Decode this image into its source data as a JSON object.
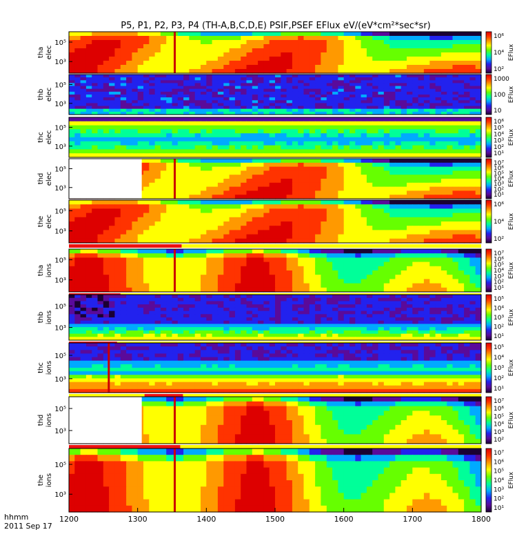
{
  "chart_data": {
    "type": "heatmap",
    "title": "P5, P1, P2, P3, P4 (TH-A,B,C,D,E) PSIF,PSEF EFlux eV/(eV*cm²*sec*sr)",
    "time_axis": {
      "label_line1": "hhmm",
      "label_line2": "2011 Sep 17",
      "ticks": [
        "1200",
        "1300",
        "1400",
        "1500",
        "1600",
        "1700",
        "1800"
      ],
      "range": [
        1200,
        1800
      ]
    },
    "colorbar_label": "EFlux",
    "panels": [
      {
        "probe": "tha",
        "species": "elec",
        "ylabel": [
          "tha",
          "elec"
        ],
        "yticks": [
          "10⁵",
          "10³"
        ],
        "cbar_ticks": [
          "10⁶",
          "10⁴",
          "10²"
        ],
        "style": "elec-hot",
        "gap_end": null,
        "marker": 1354,
        "bar": null
      },
      {
        "probe": "thb",
        "species": "elec",
        "ylabel": [
          "thb",
          "elec"
        ],
        "yticks": [
          "10⁵",
          "10³"
        ],
        "cbar_ticks": [
          "1000",
          "100",
          "10"
        ],
        "style": "thb-elec",
        "gap_end": null,
        "marker": null,
        "bar": null
      },
      {
        "probe": "thc",
        "species": "elec",
        "ylabel": [
          "thc",
          "elec"
        ],
        "yticks": [
          "10⁵",
          "10³"
        ],
        "cbar_ticks": [
          "10⁶",
          "10⁵",
          "10⁴",
          "10³",
          "10²",
          "10¹"
        ],
        "style": "bands",
        "gap_end": null,
        "marker": null,
        "bar": null
      },
      {
        "probe": "thd",
        "species": "elec",
        "ylabel": [
          "thd",
          "elec"
        ],
        "yticks": [
          "10⁵",
          "10³"
        ],
        "cbar_ticks": [
          "10⁷",
          "10⁶",
          "10⁵",
          "10⁴",
          "10³",
          "10²",
          "10¹"
        ],
        "style": "elec-hot",
        "gap_end": 1306,
        "marker": 1354,
        "bar": null
      },
      {
        "probe": "the",
        "species": "elec",
        "ylabel": [
          "the",
          "elec"
        ],
        "yticks": [
          "10⁵",
          "10³"
        ],
        "cbar_ticks": [
          "10⁶",
          "10⁴",
          "10²"
        ],
        "style": "elec-hot",
        "gap_end": null,
        "marker": null,
        "bar": [
          1200,
          1364
        ]
      },
      {
        "probe": "tha",
        "species": "ions",
        "ylabel": [
          "tha",
          "ions"
        ],
        "yticks": [
          "10⁵",
          "10³"
        ],
        "cbar_ticks": [
          "10⁷",
          "10⁶",
          "10⁵",
          "10⁴",
          "10³",
          "10²",
          "10¹"
        ],
        "style": "ions-hot",
        "gap_end": null,
        "marker": 1354,
        "bar": [
          1200,
          1275
        ]
      },
      {
        "probe": "thb",
        "species": "ions",
        "ylabel": [
          "thb",
          "ions"
        ],
        "yticks": [
          "10⁵",
          "10³"
        ],
        "cbar_ticks": [
          "10⁵",
          "10⁴",
          "10³",
          "10²",
          "10¹"
        ],
        "style": "thb-ions",
        "gap_end": null,
        "marker": null,
        "bar": [
          1200,
          1270
        ]
      },
      {
        "probe": "thc",
        "species": "ions",
        "ylabel": [
          "thc",
          "ions"
        ],
        "yticks": [
          "10⁵",
          "10³"
        ],
        "cbar_ticks": [
          "10⁵",
          "10⁴",
          "10³",
          "10²",
          "10¹"
        ],
        "style": "thc-ions",
        "gap_end": null,
        "marker": 1258,
        "bar": [
          1310,
          1366
        ]
      },
      {
        "probe": "thd",
        "species": "ions",
        "ylabel": [
          "thd",
          "ions"
        ],
        "yticks": [
          "10⁵",
          "10³"
        ],
        "cbar_ticks": [
          "10⁷",
          "10⁶",
          "10⁵",
          "10⁴",
          "10³",
          "10²"
        ],
        "style": "ions-hot",
        "gap_end": 1306,
        "marker": 1354,
        "bar": [
          1200,
          1362
        ]
      },
      {
        "probe": "the",
        "species": "ions",
        "ylabel": [
          "the",
          "ions"
        ],
        "yticks": [
          "10⁵",
          "10³"
        ],
        "cbar_ticks": [
          "10⁷",
          "10⁶",
          "10⁵",
          "10⁴",
          "10³",
          "10²",
          "10¹"
        ],
        "style": "ions-hot",
        "gap_end": null,
        "marker": 1354,
        "bar": null
      }
    ],
    "colors": {
      "marker": "#cc0000",
      "bar": "#ee1111",
      "bar_bg": "#ffff00",
      "colorscale": [
        "#1a0033",
        "#5a0a9a",
        "#2222ee",
        "#00aaff",
        "#00ff99",
        "#66ff00",
        "#ffff00",
        "#ff9900",
        "#ff3300",
        "#dd0000"
      ]
    }
  }
}
